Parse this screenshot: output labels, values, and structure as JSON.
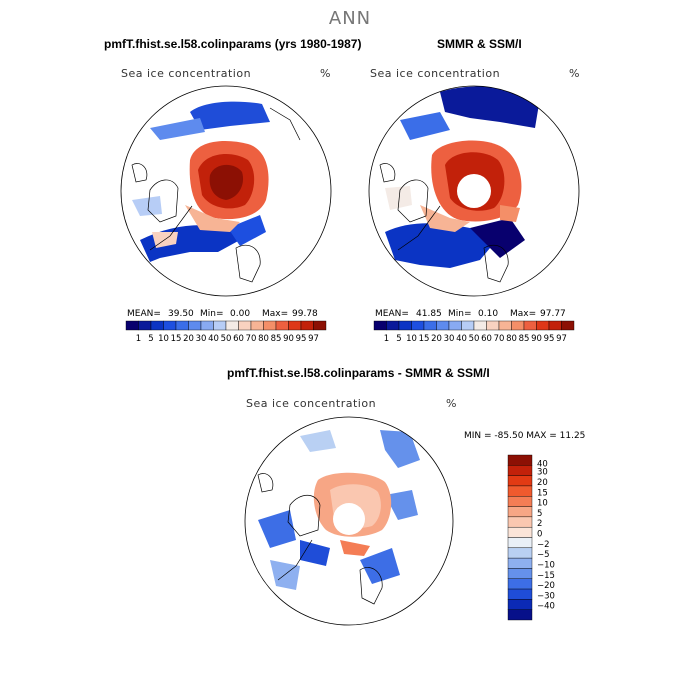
{
  "season": "ANN",
  "panels": [
    {
      "title": "pmfT.fhist.se.l58.colinparams (yrs 1980-1987)",
      "variable": "Sea ice concentration",
      "units": "%",
      "stats": {
        "mean_label": "MEAN=",
        "mean": "39.50",
        "min_label": "Min=",
        "min": "0.00",
        "max_label": "Max=",
        "max": "99.78"
      }
    },
    {
      "title": "SMMR & SSM/I",
      "variable": "Sea ice concentration",
      "units": "%",
      "stats": {
        "mean_label": "MEAN=",
        "mean": "41.85",
        "min_label": "Min=",
        "min": "0.10",
        "max_label": "Max=",
        "max": "97.77"
      }
    },
    {
      "title": "pmfT.fhist.se.l58.colinparams - SMMR & SSM/I",
      "variable": "Sea ice concentration",
      "units": "%",
      "range_text": "MIN = -85.50  MAX =  11.25"
    }
  ],
  "colorbar_top": {
    "labels": [
      "1",
      "5",
      "10",
      "15",
      "20",
      "30",
      "40",
      "50",
      "60",
      "70",
      "80",
      "85",
      "90",
      "95",
      "97"
    ],
    "colors": [
      "#08006e",
      "#0a1a9a",
      "#0b34c4",
      "#1d4fe0",
      "#3b6ee8",
      "#5e8bee",
      "#88aaf2",
      "#b7cdf6",
      "#f4ebe6",
      "#f9d2c0",
      "#f7b495",
      "#f48f68",
      "#ed6040",
      "#de3718",
      "#c2210a",
      "#8c1004"
    ]
  },
  "colorbar_diff": {
    "labels": [
      "40",
      "30",
      "20",
      "15",
      "10",
      "5",
      "2",
      "0",
      "−2",
      "−5",
      "−10",
      "−15",
      "−20",
      "−30",
      "−40"
    ],
    "colors": [
      "#8c1004",
      "#c2210a",
      "#e23a14",
      "#f05a2e",
      "#f47d55",
      "#f7a685",
      "#fac7b0",
      "#fbe4d8",
      "#eaf0f7",
      "#b9d0f3",
      "#8eb0f0",
      "#6591eb",
      "#3d6ee6",
      "#1f4dd8",
      "#0b2ab5",
      "#07108a"
    ]
  }
}
